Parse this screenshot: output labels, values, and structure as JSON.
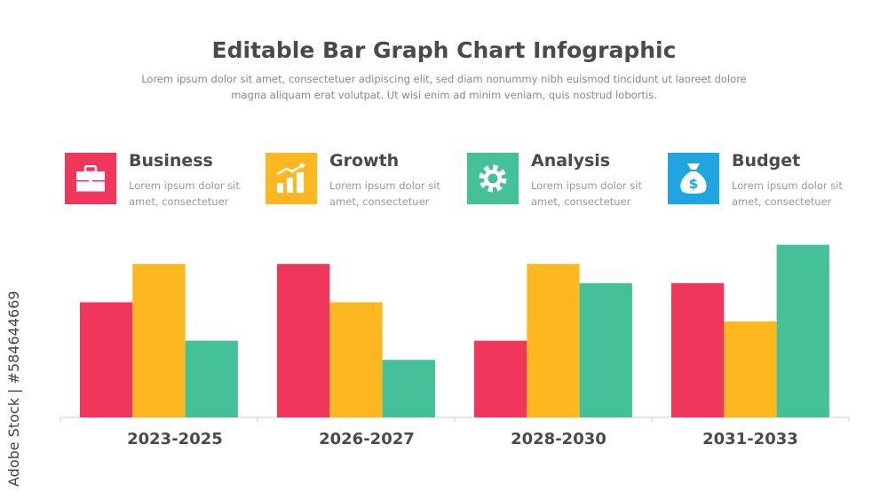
{
  "header": {
    "title": "Editable Bar Graph Chart Infographic",
    "subtitle": "Lorem ipsum dolor sit amet, consectetuer adipiscing elit, sed diam nonummy nibh euismod tincidunt ut laoreet dolore magna aliquam erat volutpat. Ut wisi enim ad minim veniam, quis nostrud  lobortis."
  },
  "cards": [
    {
      "title": "Business",
      "text": "Lorem ipsum dolor sit amet, consectetuer",
      "icon": "briefcase-icon",
      "color": "#F0365A"
    },
    {
      "title": "Growth",
      "text": "Lorem ipsum dolor sit amet, consectetuer",
      "icon": "growth-chart-icon",
      "color": "#FDB71F"
    },
    {
      "title": "Analysis",
      "text": "Lorem ipsum dolor sit amet, consectetuer",
      "icon": "gear-icon",
      "color": "#45C19A"
    },
    {
      "title": "Budget",
      "text": "Lorem ipsum dolor sit amet, consectetuer",
      "icon": "money-bag-icon",
      "color": "#1FA6E0"
    }
  ],
  "watermark": "Adobe Stock | #584644669",
  "chart_data": {
    "type": "bar",
    "categories": [
      "2023-2025",
      "2026-2027",
      "2028-2030",
      "2031-2033"
    ],
    "series": [
      {
        "name": "Business",
        "color": "#F0365A",
        "values": [
          6,
          8,
          4,
          7
        ]
      },
      {
        "name": "Growth",
        "color": "#FDB71F",
        "values": [
          8,
          6,
          8,
          5
        ]
      },
      {
        "name": "Analysis",
        "color": "#45C19A",
        "values": [
          4,
          3,
          7,
          9
        ]
      }
    ],
    "ylim": [
      0,
      10
    ],
    "grid": false,
    "title": "",
    "xlabel": "",
    "ylabel": ""
  }
}
